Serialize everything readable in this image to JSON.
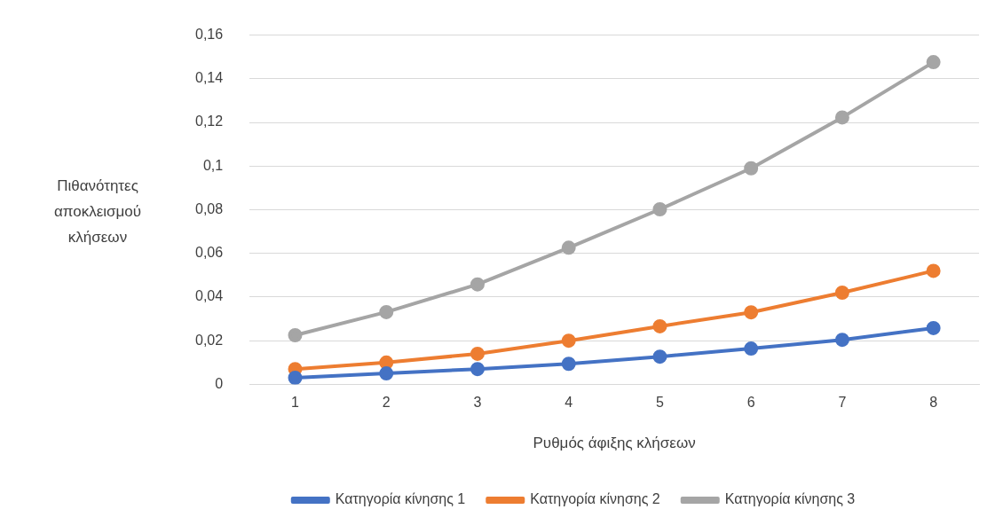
{
  "chart_data": {
    "type": "line",
    "xlabel": "Ρυθμός άφιξης κλήσεων",
    "ylabel": "Πιθανότητες αποκλεισμού κλήσεων",
    "categories": [
      "1",
      "2",
      "3",
      "4",
      "5",
      "6",
      "7",
      "8"
    ],
    "series": [
      {
        "name": "Κατηγορία κίνησης 1",
        "color": "#4472c4",
        "values": [
          0.003,
          0.005,
          0.007,
          0.0094,
          0.0127,
          0.0164,
          0.0204,
          0.0258
        ]
      },
      {
        "name": "Κατηγορία κίνησης 2",
        "color": "#ed7d31",
        "values": [
          0.007,
          0.01,
          0.014,
          0.02,
          0.0266,
          0.033,
          0.042,
          0.052
        ]
      },
      {
        "name": "Κατηγορία κίνησης 3",
        "color": "#a5a5a5",
        "values": [
          0.0225,
          0.0331,
          0.0458,
          0.0626,
          0.0802,
          0.099,
          0.1223,
          0.1476
        ]
      }
    ],
    "ylim": [
      0,
      0.16
    ],
    "yticks": [
      {
        "value": 0,
        "label": "0"
      },
      {
        "value": 0.02,
        "label": "0,02"
      },
      {
        "value": 0.04,
        "label": "0,04"
      },
      {
        "value": 0.06,
        "label": "0,06"
      },
      {
        "value": 0.08,
        "label": "0,08"
      },
      {
        "value": 0.1,
        "label": "0,1"
      },
      {
        "value": 0.12,
        "label": "0,12"
      },
      {
        "value": 0.14,
        "label": "0,14"
      },
      {
        "value": 0.16,
        "label": "0,16"
      }
    ],
    "grid": "y",
    "legend": "bottom",
    "marker": "circle",
    "line_style": "solid"
  }
}
